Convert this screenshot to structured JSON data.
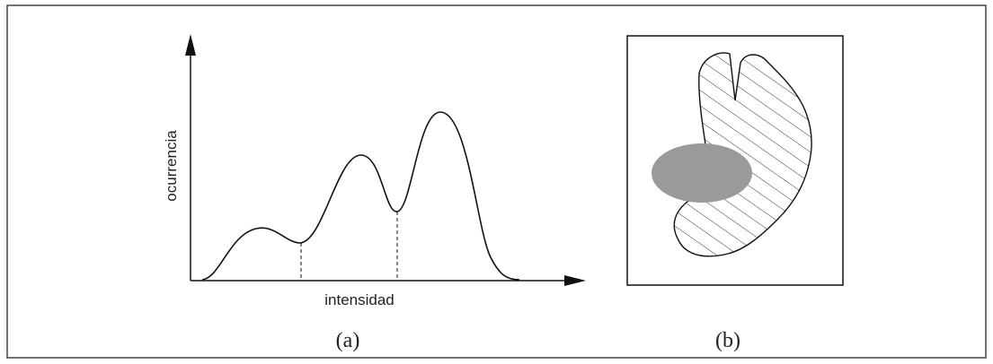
{
  "panels": [
    {
      "y_label": "ocurrencia",
      "x_label": "intensidad",
      "caption": "(a)"
    },
    {
      "caption": "(b)"
    }
  ]
}
